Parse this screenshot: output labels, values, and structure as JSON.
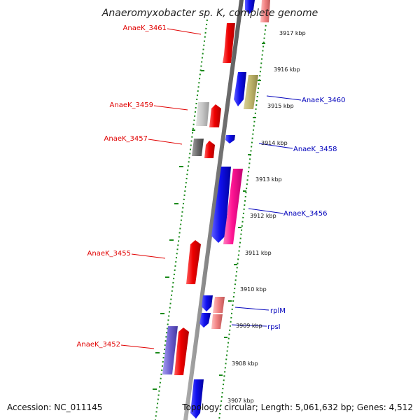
{
  "title": "Anaeromyxobacter sp. K, complete genome",
  "accession": "Accession: NC_011145",
  "topology": "Topology: circular; Length: 5,061,632 bp; Genes: 4,512",
  "colors": {
    "backbone": "#8a8a8a",
    "tick_green": "#1a8a1a",
    "forward_red": "#ee0000",
    "forward_blue": "#1010ee",
    "label_left": "#e00000",
    "label_right": "#0000bb"
  },
  "kbp_marks": [
    {
      "text": "3917 kbp"
    },
    {
      "text": "3916 kbp"
    },
    {
      "text": "3915 kbp"
    },
    {
      "text": "3914 kbp"
    },
    {
      "text": "3913 kbp"
    },
    {
      "text": "3912 kbp"
    },
    {
      "text": "3911 kbp"
    },
    {
      "text": "3910 kbp"
    },
    {
      "text": "3909 kbp"
    },
    {
      "text": "3908 kbp"
    },
    {
      "text": "3907 kbp"
    }
  ],
  "left_labels": [
    {
      "text": "AnaeK_3461"
    },
    {
      "text": "AnaeK_3459"
    },
    {
      "text": "AnaeK_3457"
    },
    {
      "text": "AnaeK_3455"
    },
    {
      "text": "AnaeK_3452"
    }
  ],
  "right_labels": [
    {
      "text": "AnaeK_3460"
    },
    {
      "text": "AnaeK_3458"
    },
    {
      "text": "AnaeK_3456"
    },
    {
      "text": "rplM"
    },
    {
      "text": "rpsI"
    }
  ]
}
